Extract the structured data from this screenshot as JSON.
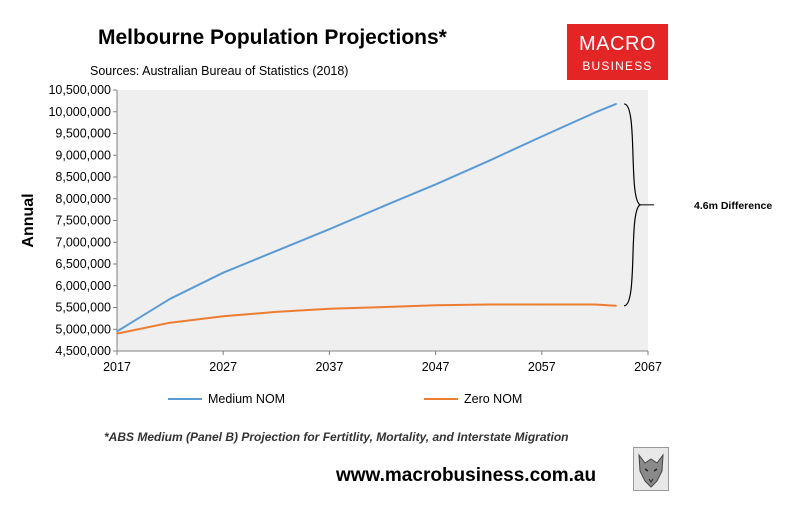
{
  "header": {
    "title": "Melbourne Population Projections*",
    "source": "Sources: Australian Bureau of Statistics (2018)"
  },
  "logo": {
    "line1": "MACRO",
    "line2": "BUSINESS",
    "color": "#e32526"
  },
  "footer": {
    "footnote": "*ABS Medium (Panel B) Projection for Fertitlity, Mortality, and Interstate Migration",
    "website": "www.macrobusiness.com.au",
    "mascot_icon": "wolf-icon"
  },
  "chart_data": {
    "type": "line",
    "title": "Melbourne Population Projections*",
    "xlabel": "",
    "ylabel": "Annual",
    "xlim": [
      2017,
      2067
    ],
    "ylim": [
      4500000,
      10500000
    ],
    "x_ticks": [
      2017,
      2027,
      2037,
      2047,
      2057,
      2067
    ],
    "y_ticks": [
      4500000,
      5000000,
      5500000,
      6000000,
      6500000,
      7000000,
      7500000,
      8000000,
      8500000,
      9000000,
      9500000,
      10000000,
      10500000
    ],
    "grid": false,
    "plot_background": "#efefef",
    "legend_position": "bottom",
    "x": [
      2017,
      2022,
      2027,
      2032,
      2037,
      2042,
      2047,
      2052,
      2057,
      2062,
      2064
    ],
    "series": [
      {
        "name": "Medium NOM",
        "color": "#5b9bd5",
        "values": [
          4950000,
          5700000,
          6300000,
          6800000,
          7300000,
          7820000,
          8330000,
          8870000,
          9430000,
          9980000,
          10180000
        ]
      },
      {
        "name": "Zero NOM",
        "color": "#ed7d31",
        "values": [
          4900000,
          5150000,
          5300000,
          5400000,
          5470000,
          5510000,
          5550000,
          5570000,
          5570000,
          5570000,
          5540000
        ]
      }
    ],
    "annotations": [
      {
        "text": "4.6m Difference",
        "from": 5540000,
        "to": 10180000,
        "at_x": 2064
      }
    ]
  }
}
